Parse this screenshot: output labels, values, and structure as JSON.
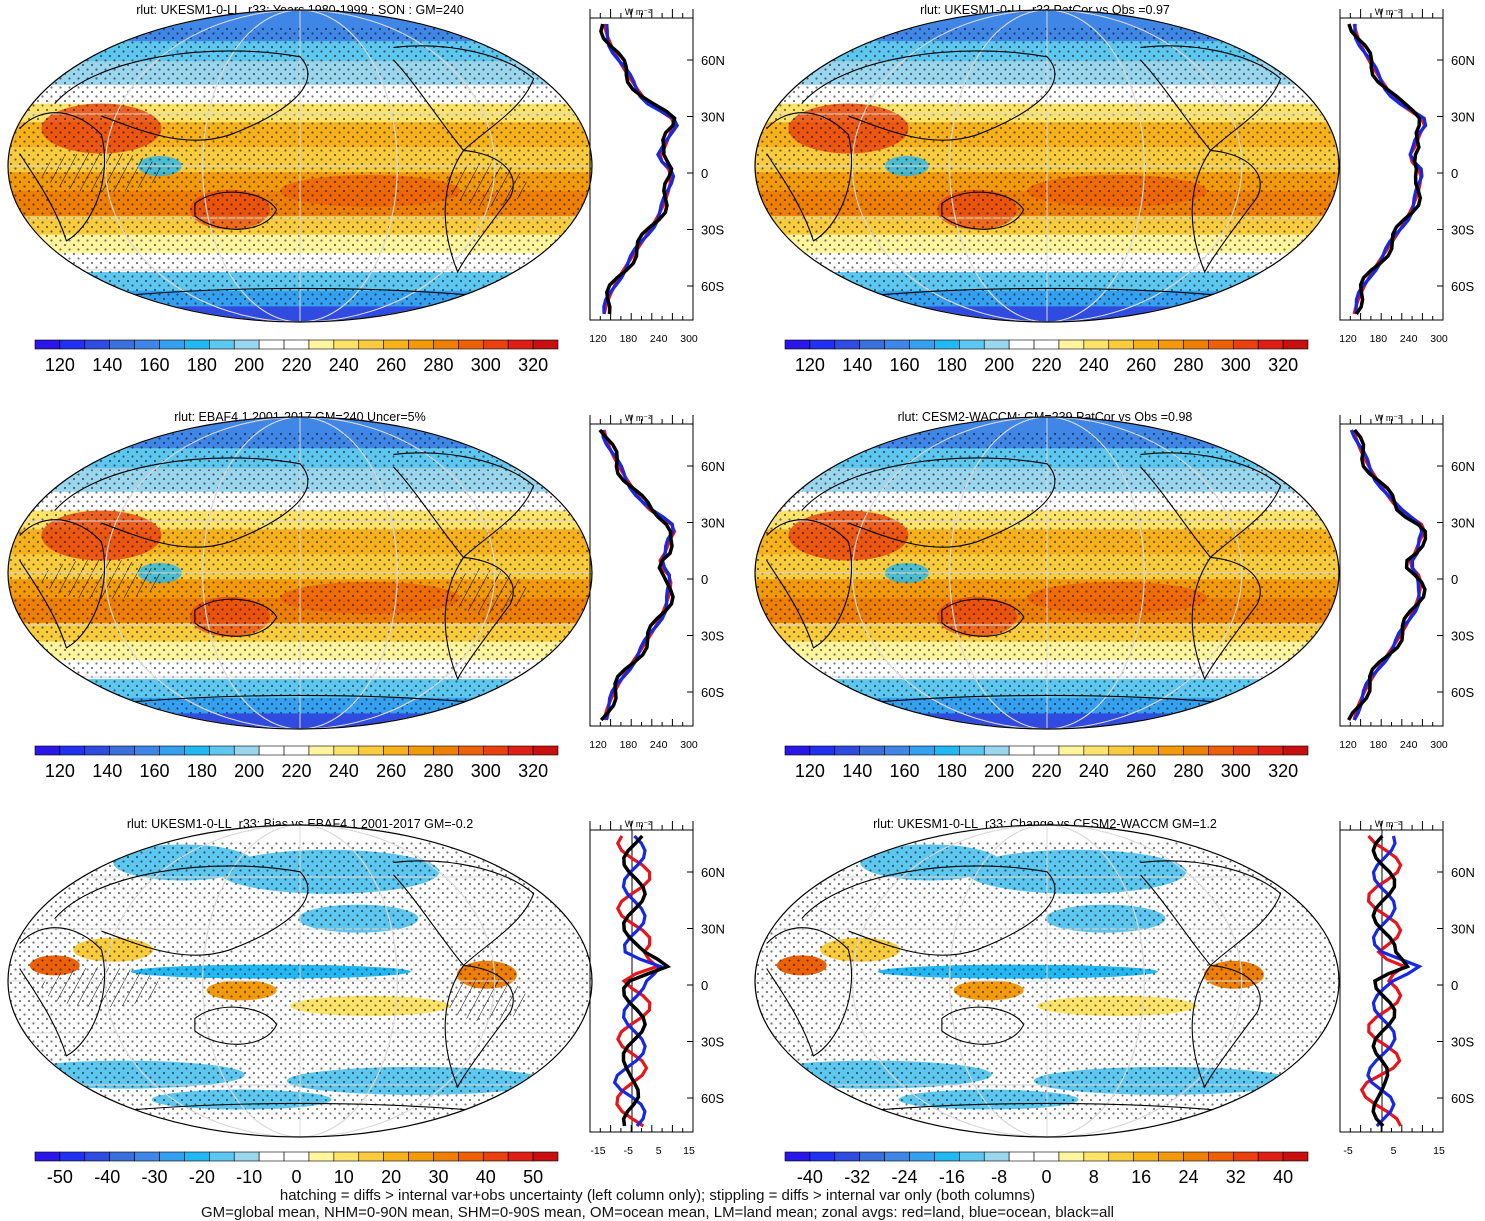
{
  "figure": {
    "variable": "rlut",
    "unit_label": "W m⁻²"
  },
  "palettes": {
    "absolute": [
      "#2a16e6",
      "#2230f0",
      "#2f4be0",
      "#3a6fdc",
      "#3f86e6",
      "#36a0f0",
      "#21b8f3",
      "#5dc7ef",
      "#9ad6ee",
      "#ffffff",
      "#ffffff",
      "#fff59e",
      "#fde36a",
      "#f9cc3e",
      "#f6b11b",
      "#f29a09",
      "#ee7f05",
      "#ec6107",
      "#e8400e",
      "#de1f16",
      "#c80f10"
    ],
    "bias": [
      "#2a16e6",
      "#2230f0",
      "#2f4be0",
      "#3a6fdc",
      "#3f86e6",
      "#36a0f0",
      "#21b8f3",
      "#5dc7ef",
      "#9ad6ee",
      "#ffffff",
      "#ffffff",
      "#fff59e",
      "#fde36a",
      "#f9cc3e",
      "#f6b11b",
      "#f29a09",
      "#ee7f05",
      "#ec6107",
      "#e8400e",
      "#de1f16",
      "#c80f10"
    ]
  },
  "panels": [
    {
      "title": "rlut: UKESM1-0-LL_r33: Years 1980-1999 : SON : GM=240",
      "kind": "absolute",
      "colorbar_labels": [
        "120",
        "140",
        "160",
        "180",
        "200",
        "220",
        "240",
        "260",
        "280",
        "300",
        "320"
      ],
      "zonal_ticks": [
        "120",
        "180",
        "240",
        "300"
      ],
      "lat_labels": [
        "60N",
        "30N",
        "0",
        "30S",
        "60S"
      ]
    },
    {
      "title": "rlut: UKESM1-0-LL_r33 PatCor vs Obs =0.97",
      "kind": "absolute",
      "colorbar_labels": [
        "120",
        "140",
        "160",
        "180",
        "200",
        "220",
        "240",
        "260",
        "280",
        "300",
        "320"
      ],
      "zonal_ticks": [
        "120",
        "180",
        "240",
        "300"
      ],
      "lat_labels": [
        "60N",
        "30N",
        "0",
        "30S",
        "60S"
      ]
    },
    {
      "title": "rlut: EBAF4.1 2001-2017 GM=240 Uncer=5%",
      "kind": "absolute",
      "colorbar_labels": [
        "120",
        "140",
        "160",
        "180",
        "200",
        "220",
        "240",
        "260",
        "280",
        "300",
        "320"
      ],
      "zonal_ticks": [
        "120",
        "180",
        "240",
        "300"
      ],
      "lat_labels": [
        "60N",
        "30N",
        "0",
        "30S",
        "60S"
      ]
    },
    {
      "title": "rlut: CESM2-WACCM: GM=239 PatCor vs Obs =0.98",
      "kind": "absolute",
      "colorbar_labels": [
        "120",
        "140",
        "160",
        "180",
        "200",
        "220",
        "240",
        "260",
        "280",
        "300",
        "320"
      ],
      "zonal_ticks": [
        "120",
        "180",
        "240",
        "300"
      ],
      "lat_labels": [
        "60N",
        "30N",
        "0",
        "30S",
        "60S"
      ]
    },
    {
      "title": "rlut: UKESM1-0-LL_r33: Bias vs EBAF4.1 2001-2017  GM=-0.2",
      "kind": "bias",
      "colorbar_labels": [
        "-50",
        "-40",
        "-30",
        "-20",
        "-10",
        "0",
        "10",
        "20",
        "30",
        "40",
        "50"
      ],
      "zonal_ticks": [
        "-15",
        "-5",
        "5",
        "15"
      ],
      "lat_labels": [
        "60N",
        "30N",
        "0",
        "30S",
        "60S"
      ]
    },
    {
      "title": "rlut: UKESM1-0-LL_r33: Change vs CESM2-WACCM GM=1.2",
      "kind": "bias",
      "colorbar_labels": [
        "-40",
        "-32",
        "-24",
        "-16",
        "-8",
        "0",
        "8",
        "16",
        "24",
        "32",
        "40"
      ],
      "zonal_ticks": [
        "-5",
        "5",
        "15"
      ],
      "lat_labels": [
        "60N",
        "30N",
        "0",
        "30S",
        "60S"
      ]
    }
  ],
  "captions": {
    "line1": "hatching = diffs > internal var+obs uncertainty (left column only); stippling = diffs > internal var only (both columns)",
    "line2": "GM=global mean, NHM=0-90N mean, SHM=0-90S mean, OM=ocean mean, LM=land mean; zonal avgs: red=land, blue=ocean, black=all"
  }
}
